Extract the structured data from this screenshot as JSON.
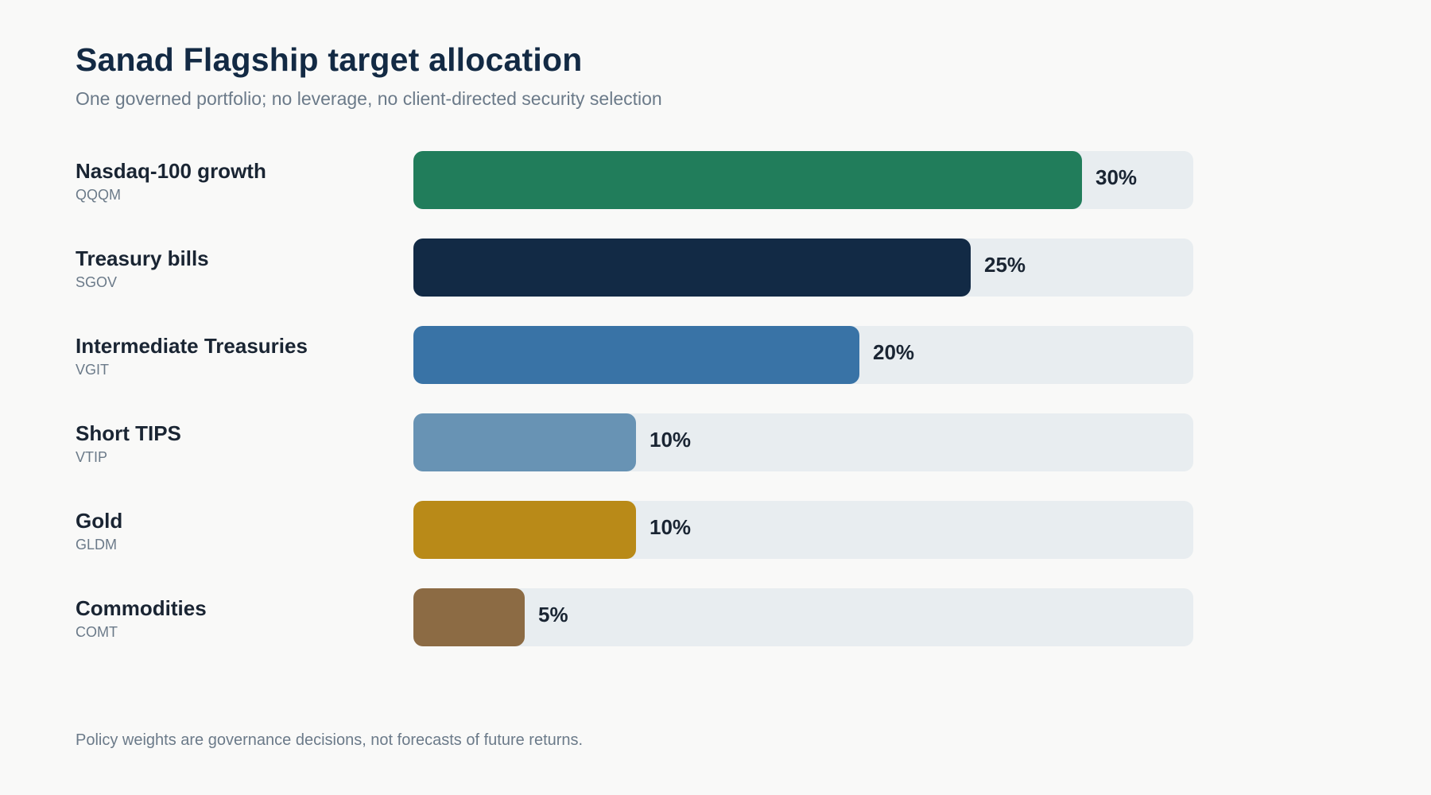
{
  "chart_data": {
    "type": "bar",
    "orientation": "horizontal",
    "title": "Sanad Flagship target allocation",
    "subtitle": "One governed portfolio; no leverage, no client-directed security selection",
    "xlim": [
      0,
      35
    ],
    "grid": false,
    "categories": [
      "Nasdaq-100 growth",
      "Treasury bills",
      "Intermediate Treasuries",
      "Short TIPS",
      "Gold",
      "Commodities"
    ],
    "tickers": [
      "QQQM",
      "SGOV",
      "VGIT",
      "VTIP",
      "GLDM",
      "COMT"
    ],
    "values": [
      30,
      25,
      20,
      10,
      10,
      5
    ],
    "value_labels": [
      "30%",
      "25%",
      "20%",
      "10%",
      "10%",
      "5%"
    ],
    "colors": [
      "#217d5b",
      "#122a45",
      "#3973a6",
      "#6893b4",
      "#b98a18",
      "#8c6b44"
    ],
    "track_color": "#e8edf0",
    "footnote": "Policy weights are governance decisions, not forecasts of future returns."
  }
}
